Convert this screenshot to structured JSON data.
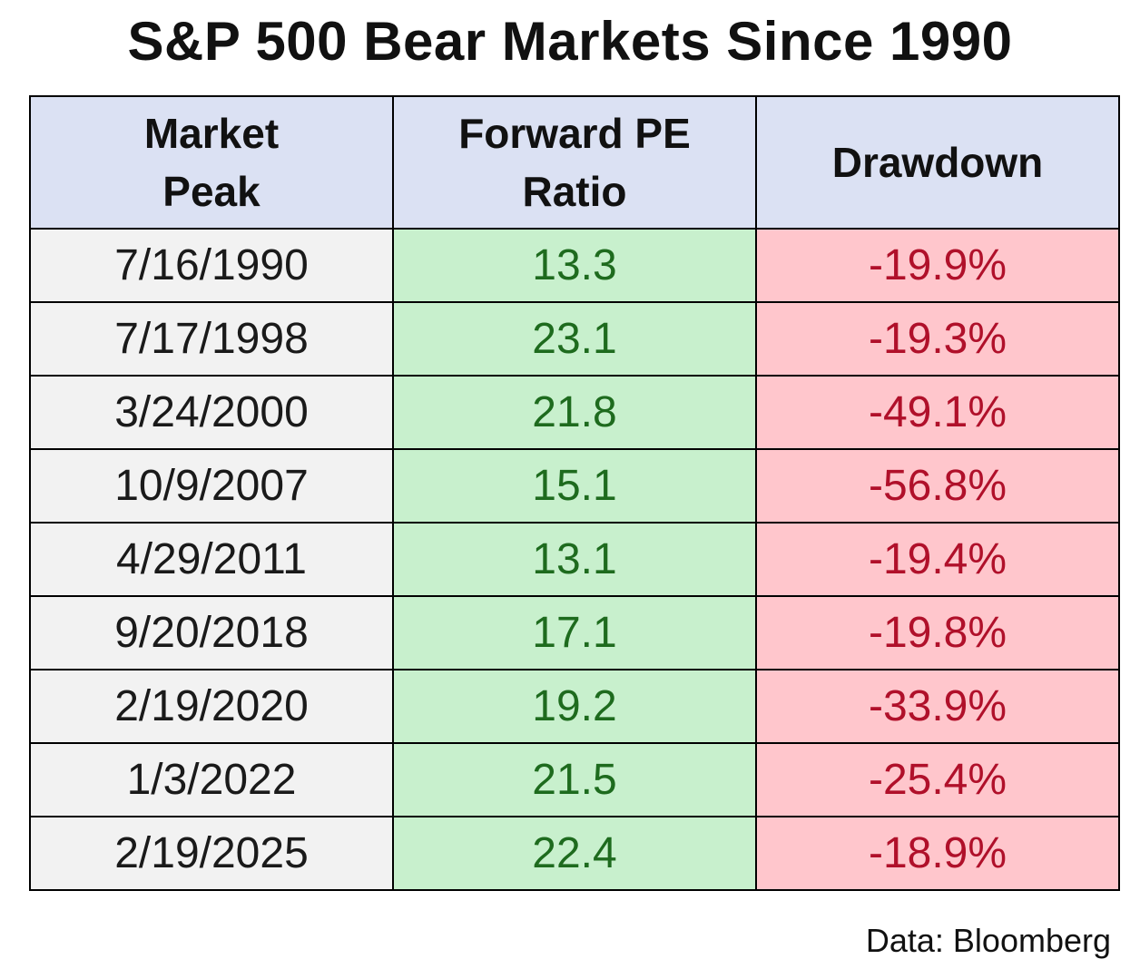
{
  "chart_data": {
    "type": "table",
    "title": "S&P 500 Bear Markets Since 1990",
    "columns": [
      "Market Peak",
      "Forward PE Ratio",
      "Drawdown"
    ],
    "header_lines": [
      [
        "Market",
        "Peak"
      ],
      [
        "Forward PE",
        "Ratio"
      ],
      [
        "Drawdown"
      ]
    ],
    "rows": [
      {
        "peak": "7/16/1990",
        "pe": "13.3",
        "drawdown": "-19.9%"
      },
      {
        "peak": "7/17/1998",
        "pe": "23.1",
        "drawdown": "-19.3%"
      },
      {
        "peak": "3/24/2000",
        "pe": "21.8",
        "drawdown": "-49.1%"
      },
      {
        "peak": "10/9/2007",
        "pe": "15.1",
        "drawdown": "-56.8%"
      },
      {
        "peak": "4/29/2011",
        "pe": "13.1",
        "drawdown": "-19.4%"
      },
      {
        "peak": "9/20/2018",
        "pe": "17.1",
        "drawdown": "-19.8%"
      },
      {
        "peak": "2/19/2020",
        "pe": "19.2",
        "drawdown": "-33.9%"
      },
      {
        "peak": "1/3/2022",
        "pe": "21.5",
        "drawdown": "-25.4%"
      },
      {
        "peak": "2/19/2025",
        "pe": "22.4",
        "drawdown": "-18.9%"
      }
    ],
    "source": "Data: Bloomberg"
  },
  "colors": {
    "header_bg": "#dbe1f3",
    "peak_bg": "#f2f2f2",
    "pe_bg": "#c8f0cd",
    "pe_text": "#1e6b1e",
    "drawdown_bg": "#ffc6cc",
    "drawdown_text": "#b0102a"
  }
}
